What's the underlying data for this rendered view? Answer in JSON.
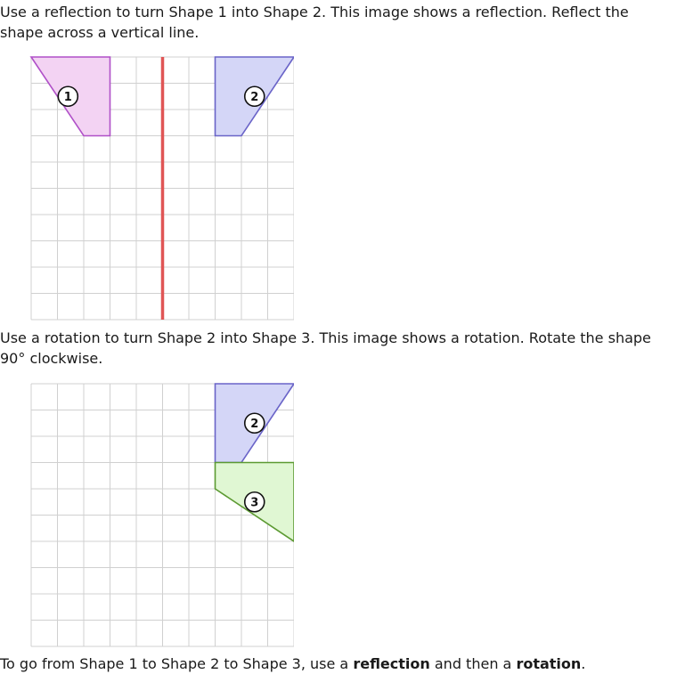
{
  "instructions": {
    "step1": "Use a reflection to turn Shape 1 into Shape 2. This image shows a reflection. Reflect the shape across a vertical line.",
    "step2": "Use a rotation to turn Shape 2 into Shape 3. This image shows a rotation. Rotate the shape 90° clockwise.",
    "summary_prefix": "To go from Shape 1 to Shape 2 to Shape 3, use a ",
    "summary_bold1": "reflection",
    "summary_middle": " and then a ",
    "summary_bold2": "rotation",
    "summary_suffix": "."
  },
  "grid": {
    "cols": 10,
    "rows": 10
  },
  "colors": {
    "grid_line": "#d0d0d0",
    "mirror_line": "#e05555",
    "shape1_fill": "#f3d3f3",
    "shape1_stroke": "#b050c8",
    "shape2_fill": "#d4d6f7",
    "shape2_stroke": "#6a64c8",
    "shape3_fill": "#e0f7d3",
    "shape3_stroke": "#5c9a32"
  },
  "figure1": {
    "mirror_x": 5,
    "shapes": [
      {
        "id": "shape1",
        "label": "1",
        "points": [
          [
            0,
            0
          ],
          [
            3,
            0
          ],
          [
            3,
            3
          ],
          [
            2,
            3
          ]
        ],
        "label_at": [
          1.4,
          1.5
        ]
      },
      {
        "id": "shape2",
        "label": "2",
        "points": [
          [
            7,
            0
          ],
          [
            10,
            0
          ],
          [
            8,
            3
          ],
          [
            7,
            3
          ]
        ],
        "label_at": [
          8.5,
          1.5
        ]
      }
    ]
  },
  "figure2": {
    "shapes": [
      {
        "id": "shape2",
        "label": "2",
        "points": [
          [
            7,
            0
          ],
          [
            10,
            0
          ],
          [
            8,
            3
          ],
          [
            7,
            3
          ]
        ],
        "label_at": [
          8.5,
          1.5
        ]
      },
      {
        "id": "shape3",
        "label": "3",
        "points": [
          [
            7,
            3
          ],
          [
            10,
            3
          ],
          [
            10,
            6
          ],
          [
            7,
            4
          ]
        ],
        "label_at": [
          8.5,
          4.5
        ]
      }
    ]
  }
}
